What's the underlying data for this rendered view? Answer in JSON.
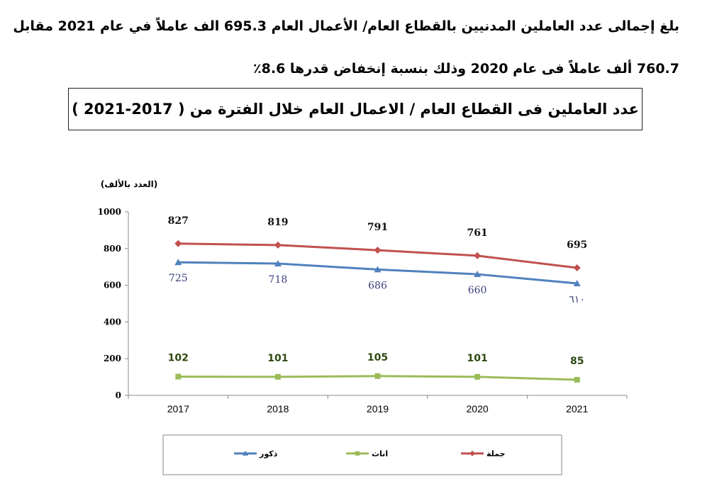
{
  "intro": {
    "line1": "بلغ إجمالى عدد العاملين المدنيين بالقطاع العام/ الأعمال العام  695.3 الف عاملاً في عام 2021 مقابل",
    "line2": "760.7 ألف عاملاً  فى عام  2020  وذلك بنسبة إنخفاض قدرها 8.6٪"
  },
  "chart_title": "عدد العاملين فى القطاع العام / الاعمال العام خلال الفترة من ( 2017-2021 )",
  "chart_data": {
    "type": "line",
    "title": "عدد العاملين فى القطاع العام / الاعمال العام خلال الفترة من ( 2017-2021 )",
    "ylabel": "(العدد بالألف)",
    "xlabel": "",
    "categories": [
      "2017",
      "2018",
      "2019",
      "2020",
      "2021"
    ],
    "ylim": [
      0,
      1000
    ],
    "yticks": [
      "0",
      "200",
      "400",
      "600",
      "800",
      "1000"
    ],
    "series": [
      {
        "name": "جملة",
        "color": "#c0504d",
        "values": [
          827,
          819,
          791,
          761,
          695
        ],
        "labels": [
          "827",
          "819",
          "791",
          "761",
          "695"
        ]
      },
      {
        "name": "ذكور",
        "color": "#4f81bd",
        "values": [
          725,
          718,
          686,
          660,
          610
        ],
        "labels": [
          "725",
          "718",
          "686",
          "660",
          "٦١٠"
        ]
      },
      {
        "name": "اناث",
        "color": "#9bbb59",
        "values": [
          102,
          101,
          105,
          101,
          85
        ],
        "labels": [
          "102",
          "101",
          "105",
          "101",
          "85"
        ]
      }
    ],
    "legend": {
      "position": "bottom",
      "order": [
        "ذكور",
        "اناث",
        "جملة"
      ]
    }
  }
}
